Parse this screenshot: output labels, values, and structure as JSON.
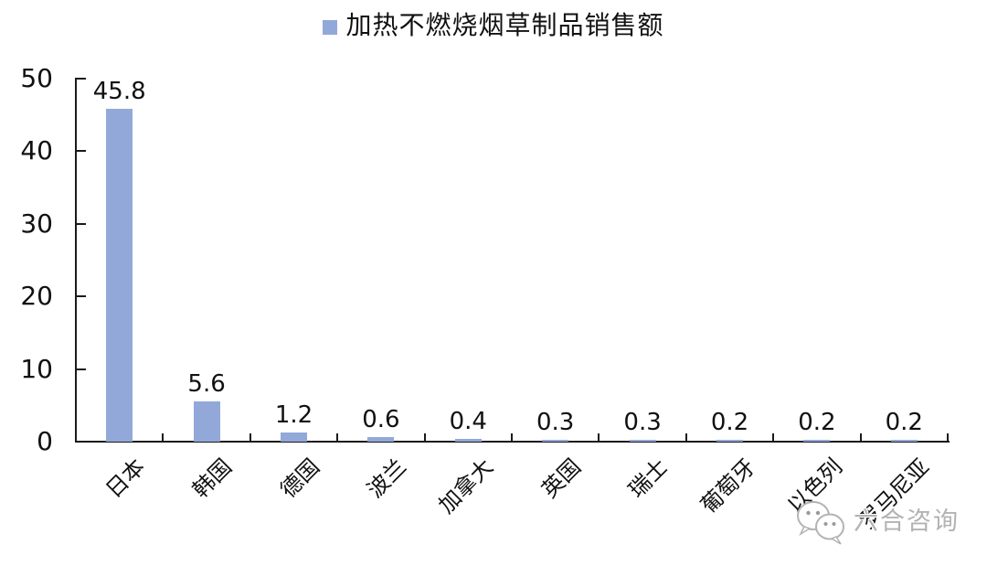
{
  "legend": {
    "label": "加热不燃烧烟草制品销售额"
  },
  "chart_data": {
    "type": "bar",
    "title": "",
    "legend_entries": [
      "加热不燃烧烟草制品销售额"
    ],
    "legend_position": "top-center",
    "categories": [
      "日本",
      "韩国",
      "德国",
      "波兰",
      "加拿大",
      "英国",
      "瑞士",
      "葡萄牙",
      "以色列",
      "罗马尼亚"
    ],
    "values": [
      45.8,
      5.6,
      1.2,
      0.6,
      0.4,
      0.3,
      0.3,
      0.2,
      0.2,
      0.2
    ],
    "value_labels": [
      "45.8",
      "5.6",
      "1.2",
      "0.6",
      "0.4",
      "0.3",
      "0.3",
      "0.2",
      "0.2",
      "0.2"
    ],
    "xlabel": "",
    "ylabel": "",
    "ylim": [
      0,
      50
    ],
    "yticks": [
      0,
      10,
      20,
      30,
      40,
      50
    ],
    "grid": false,
    "bar_color": "#92A8D9",
    "axis_color": "#1a1a1a",
    "x_tick_style": "inside-up-at-category-boundaries",
    "y_tick_style": "inside-right",
    "category_label_rotation_deg": -45
  },
  "watermark": {
    "text": "六合咨询",
    "logo": "wechat-chat-bubbles-icon"
  }
}
